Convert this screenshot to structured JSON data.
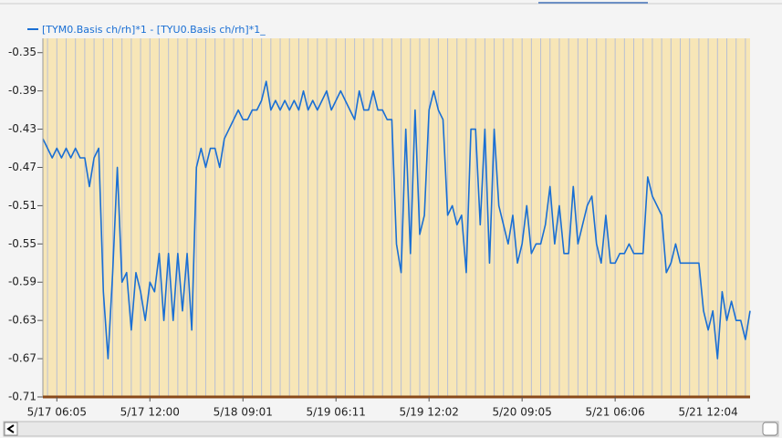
{
  "chart_data": {
    "type": "line",
    "series": [
      {
        "name": "[TYM0.Basis ch/rh]*1 - [TYU0.Basis ch/rh]*1_",
        "color": "#1a6fd4",
        "values": [
          -0.44,
          -0.45,
          -0.46,
          -0.45,
          -0.46,
          -0.45,
          -0.46,
          -0.45,
          -0.46,
          -0.46,
          -0.49,
          -0.46,
          -0.45,
          -0.6,
          -0.67,
          -0.58,
          -0.47,
          -0.59,
          -0.58,
          -0.64,
          -0.58,
          -0.6,
          -0.63,
          -0.59,
          -0.6,
          -0.56,
          -0.63,
          -0.56,
          -0.63,
          -0.56,
          -0.62,
          -0.56,
          -0.64,
          -0.47,
          -0.45,
          -0.47,
          -0.45,
          -0.45,
          -0.47,
          -0.44,
          -0.43,
          -0.42,
          -0.41,
          -0.42,
          -0.42,
          -0.41,
          -0.41,
          -0.4,
          -0.38,
          -0.41,
          -0.4,
          -0.41,
          -0.4,
          -0.41,
          -0.4,
          -0.41,
          -0.39,
          -0.41,
          -0.4,
          -0.41,
          -0.4,
          -0.39,
          -0.41,
          -0.4,
          -0.39,
          -0.4,
          -0.41,
          -0.42,
          -0.39,
          -0.41,
          -0.41,
          -0.39,
          -0.41,
          -0.41,
          -0.42,
          -0.42,
          -0.55,
          -0.58,
          -0.43,
          -0.56,
          -0.41,
          -0.54,
          -0.52,
          -0.41,
          -0.39,
          -0.41,
          -0.42,
          -0.52,
          -0.51,
          -0.53,
          -0.52,
          -0.58,
          -0.43,
          -0.43,
          -0.53,
          -0.43,
          -0.57,
          -0.43,
          -0.51,
          -0.53,
          -0.55,
          -0.52,
          -0.57,
          -0.55,
          -0.51,
          -0.56,
          -0.55,
          -0.55,
          -0.53,
          -0.49,
          -0.55,
          -0.51,
          -0.56,
          -0.56,
          -0.49,
          -0.55,
          -0.53,
          -0.51,
          -0.5,
          -0.55,
          -0.57,
          -0.52,
          -0.57,
          -0.57,
          -0.56,
          -0.56,
          -0.55,
          -0.56,
          -0.56,
          -0.56,
          -0.48,
          -0.5,
          -0.51,
          -0.52,
          -0.58,
          -0.57,
          -0.55,
          -0.57,
          -0.57,
          -0.57,
          -0.57,
          -0.57,
          -0.62,
          -0.64,
          -0.62,
          -0.67,
          -0.6,
          -0.63,
          -0.61,
          -0.63,
          -0.63,
          -0.65,
          -0.62
        ]
      }
    ],
    "categories": [
      null,
      null,
      null,
      "5/17 06:05",
      null,
      null,
      null,
      null,
      null,
      null,
      null,
      null,
      null,
      null,
      null,
      null,
      null,
      null,
      null,
      null,
      null,
      null,
      null,
      "5/17 12:00",
      null,
      null,
      null,
      null,
      null,
      null,
      null,
      null,
      null,
      null,
      null,
      null,
      null,
      null,
      null,
      null,
      null,
      null,
      null,
      "5/18 09:01",
      null,
      null,
      null,
      null,
      null,
      null,
      null,
      null,
      null,
      null,
      null,
      null,
      null,
      null,
      null,
      null,
      null,
      null,
      null,
      "5/19 06:11",
      null,
      null,
      null,
      null,
      null,
      null,
      null,
      null,
      null,
      null,
      null,
      null,
      null,
      null,
      null,
      null,
      null,
      null,
      null,
      "5/19 12:02",
      null,
      null,
      null,
      null,
      null,
      null,
      null,
      null,
      null,
      null,
      null,
      null,
      null,
      null,
      null,
      null,
      null,
      null,
      null,
      "5/20 09:05",
      null,
      null,
      null,
      null,
      null,
      null,
      null,
      null,
      null,
      null,
      null,
      null,
      null,
      null,
      null,
      null,
      null,
      null,
      null,
      "5/21 06:06",
      null,
      null,
      null,
      null,
      null,
      null,
      null,
      null,
      null,
      null,
      null,
      null,
      null,
      null,
      null,
      null,
      null,
      null,
      null,
      "5/21 12:04",
      null,
      null,
      null,
      null,
      null,
      null,
      null,
      null,
      null
    ],
    "ylim": [
      -0.71,
      -0.335
    ],
    "yticks": [
      -0.35,
      -0.39,
      -0.43,
      -0.47,
      -0.51,
      -0.55,
      -0.59,
      -0.63,
      -0.67,
      -0.71
    ],
    "grid": true
  }
}
